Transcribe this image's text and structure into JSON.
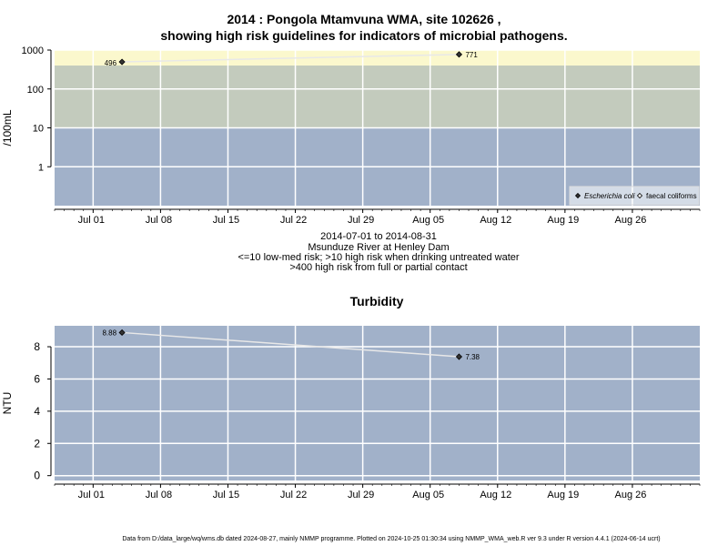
{
  "title": {
    "line1": "2014 : Pongola Mtamvuna WMA, site 102626 ,",
    "line2": "showing high risk guidelines for indicators of microbial pathogens."
  },
  "caption": {
    "line1": "2014-07-01 to 2014-08-31",
    "line2": "Msunduze River at Henley Dam",
    "line3": "<=10 low-med risk; >10 high risk when drinking untreated water",
    "line4": ">400 high risk from full or partial contact"
  },
  "footer": "Data from D:/data_large/wq/wms.db dated 2024-08-27, mainly NMMP programme. Plotted on 2024-10-25 01:30:34 using NMMP_WMA_web.R ver 9.3 under R version 4.4.1 (2024-06-14 ucrt)",
  "colors": {
    "band_low": "#a1b1c9",
    "band_mid": "#c3cbbd",
    "band_high": "#fbf8cd",
    "turbidity_bg": "#a1b1c9",
    "grid": "#ffffff",
    "line": "#e8e8e8",
    "point": "#333333"
  },
  "chart_data": [
    {
      "type": "scatter",
      "title": "",
      "ylabel": "/100mL",
      "y_scale": "log",
      "xlim": [
        "2014-06-27",
        "2014-09-02"
      ],
      "ylim": [
        0.1,
        1000
      ],
      "yticks": [
        {
          "value": 1,
          "label": "1"
        },
        {
          "value": 10,
          "label": "10"
        },
        {
          "value": 100,
          "label": "100"
        },
        {
          "value": 1000,
          "label": "1000"
        }
      ],
      "xticks": [
        {
          "date": "2014-07-01",
          "label": "Jul 01"
        },
        {
          "date": "2014-07-08",
          "label": "Jul 08"
        },
        {
          "date": "2014-07-15",
          "label": "Jul 15"
        },
        {
          "date": "2014-07-22",
          "label": "Jul 22"
        },
        {
          "date": "2014-07-29",
          "label": "Jul 29"
        },
        {
          "date": "2014-08-05",
          "label": "Aug 05"
        },
        {
          "date": "2014-08-12",
          "label": "Aug 12"
        },
        {
          "date": "2014-08-19",
          "label": "Aug 19"
        },
        {
          "date": "2014-08-26",
          "label": "Aug 26"
        }
      ],
      "risk_bands": [
        {
          "from": 0.1,
          "to": 10,
          "label": "low-med risk"
        },
        {
          "from": 10,
          "to": 400,
          "label": "high risk when drinking untreated water"
        },
        {
          "from": 400,
          "to": 1000,
          "label": "high risk from full or partial contact"
        }
      ],
      "grid": true,
      "legend_position": "bottom-right",
      "series": [
        {
          "name": "Escherichia coli",
          "marker": "filled-diamond",
          "points": [
            {
              "x": "2014-07-04",
              "y": 496,
              "label": "496"
            },
            {
              "x": "2014-08-08",
              "y": 771,
              "label": "771"
            }
          ]
        },
        {
          "name": "faecal coliforms",
          "marker": "open-diamond",
          "points": []
        }
      ]
    },
    {
      "type": "line",
      "title": "Turbidity",
      "ylabel": "NTU",
      "xlim": [
        "2014-06-27",
        "2014-09-02"
      ],
      "ylim": [
        -0.3,
        9.3
      ],
      "yticks": [
        {
          "value": 0,
          "label": "0"
        },
        {
          "value": 2,
          "label": "2"
        },
        {
          "value": 4,
          "label": "4"
        },
        {
          "value": 6,
          "label": "6"
        },
        {
          "value": 8,
          "label": "8"
        }
      ],
      "xticks": [
        {
          "date": "2014-07-01",
          "label": "Jul 01"
        },
        {
          "date": "2014-07-08",
          "label": "Jul 08"
        },
        {
          "date": "2014-07-15",
          "label": "Jul 15"
        },
        {
          "date": "2014-07-22",
          "label": "Jul 22"
        },
        {
          "date": "2014-07-29",
          "label": "Jul 29"
        },
        {
          "date": "2014-08-05",
          "label": "Aug 05"
        },
        {
          "date": "2014-08-12",
          "label": "Aug 12"
        },
        {
          "date": "2014-08-19",
          "label": "Aug 19"
        },
        {
          "date": "2014-08-26",
          "label": "Aug 26"
        }
      ],
      "grid": true,
      "series": [
        {
          "points": [
            {
              "x": "2014-07-04",
              "y": 8.88,
              "label": "8.88"
            },
            {
              "x": "2014-08-08",
              "y": 7.38,
              "label": "7.38"
            }
          ]
        }
      ]
    }
  ]
}
